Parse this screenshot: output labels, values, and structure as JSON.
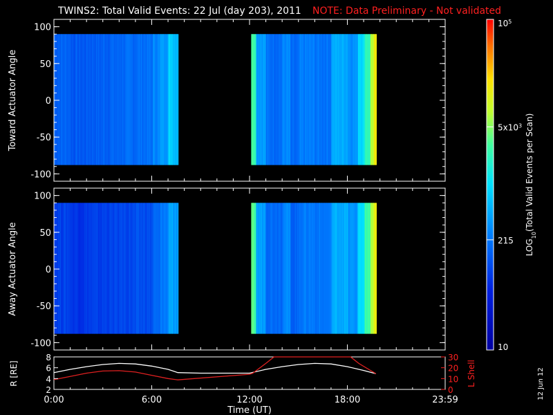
{
  "header": {
    "title": "TWINS2: Total Valid Events: 22 Jul (day 203), 2011",
    "note": "NOTE: Data Preliminary - Not validated"
  },
  "colors": {
    "background": "#000000",
    "axis": "#ffffff",
    "note_red": "#ff2020",
    "r_line": "#ffffff",
    "lshell_line": "#e02020"
  },
  "footer": {
    "date_stamp": "12 Jun 12"
  },
  "chart_data": [
    {
      "type": "heatmap",
      "ylabel": "Toward Actuator Angle",
      "xlim": [
        0,
        24
      ],
      "ylim": [
        -110,
        110
      ],
      "yticks": [
        "100",
        "50",
        "0",
        "-50",
        "-100"
      ],
      "coverage_hours": [
        [
          0,
          7.6
        ],
        [
          12.1,
          19.75
        ]
      ],
      "angle_range": [
        -88,
        90
      ],
      "level_by_hour": [
        [
          0.0,
          0.3
        ],
        [
          1.0,
          0.28
        ],
        [
          2.0,
          0.29
        ],
        [
          3.0,
          0.3
        ],
        [
          4.0,
          0.31
        ],
        [
          5.0,
          0.32
        ],
        [
          6.0,
          0.36
        ],
        [
          6.5,
          0.4
        ],
        [
          7.0,
          0.48
        ],
        [
          7.3,
          0.45
        ],
        [
          12.1,
          0.62
        ],
        [
          12.4,
          0.4
        ],
        [
          13.0,
          0.32
        ],
        [
          14.0,
          0.36
        ],
        [
          14.5,
          0.3
        ],
        [
          15.0,
          0.34
        ],
        [
          16.0,
          0.33
        ],
        [
          17.0,
          0.42
        ],
        [
          18.0,
          0.38
        ],
        [
          18.6,
          0.5
        ],
        [
          19.0,
          0.6
        ],
        [
          19.4,
          0.72
        ],
        [
          19.6,
          0.8
        ]
      ]
    },
    {
      "type": "heatmap",
      "ylabel": "Away Actuator Angle",
      "xlim": [
        0,
        24
      ],
      "ylim": [
        -110,
        110
      ],
      "yticks": [
        "100",
        "50",
        "0",
        "-50",
        "-100"
      ],
      "coverage_hours": [
        [
          0,
          7.6
        ],
        [
          12.1,
          19.75
        ]
      ],
      "angle_range": [
        -88,
        90
      ],
      "level_by_hour": [
        [
          0.0,
          0.24
        ],
        [
          1.0,
          0.22
        ],
        [
          2.0,
          0.23
        ],
        [
          3.0,
          0.24
        ],
        [
          4.0,
          0.25
        ],
        [
          5.0,
          0.26
        ],
        [
          6.0,
          0.3
        ],
        [
          6.5,
          0.34
        ],
        [
          7.0,
          0.42
        ],
        [
          7.3,
          0.38
        ],
        [
          12.1,
          0.62
        ],
        [
          12.4,
          0.4
        ],
        [
          13.0,
          0.32
        ],
        [
          14.0,
          0.36
        ],
        [
          14.5,
          0.3
        ],
        [
          15.0,
          0.34
        ],
        [
          16.0,
          0.33
        ],
        [
          17.0,
          0.42
        ],
        [
          18.0,
          0.38
        ],
        [
          18.6,
          0.5
        ],
        [
          19.0,
          0.6
        ],
        [
          19.4,
          0.72
        ],
        [
          19.6,
          0.8
        ]
      ]
    },
    {
      "type": "line",
      "xlim": [
        0,
        24
      ],
      "xticks": [
        "0:00",
        "6:00",
        "12:00",
        "18:00",
        "23:59"
      ],
      "xlabel": "Time (UT)",
      "left_axis": {
        "ylabel": "R [RE]",
        "ylim": [
          2,
          8
        ],
        "yticks": [
          "8",
          "6",
          "4",
          "2"
        ]
      },
      "right_axis": {
        "ylabel": "L Shell",
        "ylim": [
          0,
          30
        ],
        "yticks": [
          "30",
          "20",
          "10",
          "0"
        ]
      },
      "series": [
        {
          "axis": "left",
          "color": "#ffffff",
          "x": [
            0,
            1,
            2,
            3,
            4,
            5,
            6,
            7,
            7.6,
            9,
            12,
            13,
            14,
            15,
            16,
            17,
            18,
            19,
            19.75
          ],
          "y": [
            5.1,
            5.7,
            6.2,
            6.6,
            6.8,
            6.7,
            6.3,
            5.7,
            5.1,
            5.0,
            5.0,
            5.7,
            6.2,
            6.6,
            6.8,
            6.7,
            6.2,
            5.5,
            4.9
          ]
        },
        {
          "axis": "right",
          "color": "#e02020",
          "x": [
            0,
            1,
            2,
            3,
            4,
            5,
            6,
            7,
            7.6,
            12,
            12.2,
            13,
            13.5,
            18.2,
            18.7,
            19.75
          ],
          "y": [
            9,
            12,
            15,
            17,
            17.3,
            16,
            13,
            10,
            8.8,
            14,
            15,
            24,
            30,
            30,
            24,
            14.5
          ]
        }
      ]
    }
  ],
  "colorbar": {
    "label": "LOG10(Total Valid Events per Scan)",
    "ticks": [
      "10",
      "215",
      "5x10^3",
      "10^5"
    ],
    "range": [
      10,
      100000
    ],
    "scale": "log"
  }
}
